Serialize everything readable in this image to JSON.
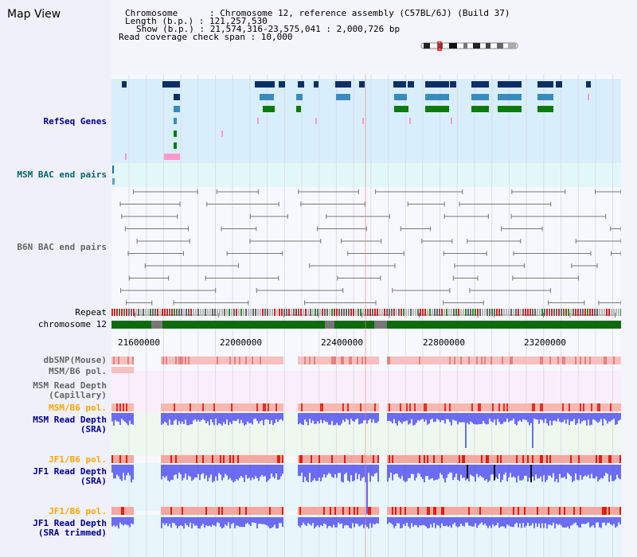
{
  "page_title": "Map View",
  "info": {
    "chromosome": "Chromosome      : Chromosome 12, reference assembly (C57BL/6J) (Build 37)",
    "length": "Length (b.p.) : 121,257,530",
    "show": "Show (b.p.) : 21,574,316-23,575,041 : 2,000,726 bp",
    "coverage": "Read coverage check span : 10,000"
  },
  "tracks": {
    "refseq": "RefSeq Genes",
    "msm_bac": "MSM BAC end pairs",
    "b6n_bac": "B6N BAC end pairs",
    "repeat": "Repeat",
    "chromosome": "chromosome 12",
    "dbsnp": "dbSNP(Mouse)",
    "msm_b6_pol_1": "MSM/B6 pol.",
    "msm_depth_cap": "MSM Read Depth\n(Capillary)",
    "msm_b6_pol_2": "MSM/B6 pol.",
    "msm_depth_sra": "MSM Read Depth\n(SRA)",
    "jf1_b6_pol_1": "JF1/B6 pol.",
    "jf1_depth_sra": "JF1 Read Depth\n(SRA)",
    "jf1_b6_pol_2": "JF1/B6 pol.",
    "jf1_depth_trim": "JF1 Read Depth\n(SRA trimmed)"
  },
  "axis_ticks": [
    "21600000",
    "22000000",
    "22400000",
    "22800000",
    "23200000"
  ],
  "colors": {
    "refseq_bg": "#d8eefa",
    "msm_bac_bg": "#e2f8f8",
    "gene_dark": "#0d2f66",
    "gene_mid": "#3a8bbd",
    "gene_green": "#0c7a0c",
    "gene_pink": "#ff99cc",
    "chrom_green": "#0d6b0d",
    "depth_blue": "#5454f0",
    "label_blue": "#00008b",
    "label_teal": "#006666",
    "label_orange": "#ffa500"
  }
}
